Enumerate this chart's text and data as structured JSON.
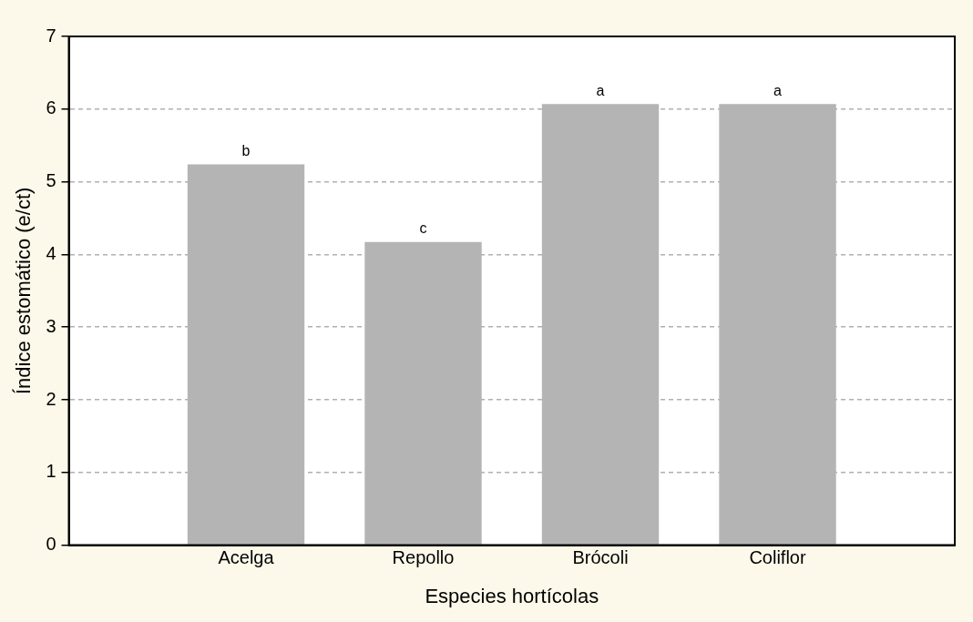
{
  "chart_data": {
    "type": "bar",
    "xlabel": "Especies hortícolas",
    "ylabel": "Índice estomático (e/ct)",
    "categories": [
      "Acelga",
      "Repollo",
      "Brócoli",
      "Coliflor"
    ],
    "values": [
      5.24,
      4.17,
      6.07,
      6.07
    ],
    "color": "#b4b4b4",
    "ylim": [
      0,
      7
    ],
    "yticks": [
      0,
      1,
      2,
      3,
      4,
      5,
      6,
      7
    ],
    "grid": "y",
    "legend": false,
    "annotations": [
      {
        "text": "b",
        "x": "Acelga",
        "y": 5.24
      },
      {
        "text": "c",
        "x": "Repollo",
        "y": 4.17
      },
      {
        "text": "a",
        "x": "Brócoli",
        "y": 6.07
      },
      {
        "text": "a",
        "x": "Coliflor",
        "y": 6.07
      }
    ]
  }
}
